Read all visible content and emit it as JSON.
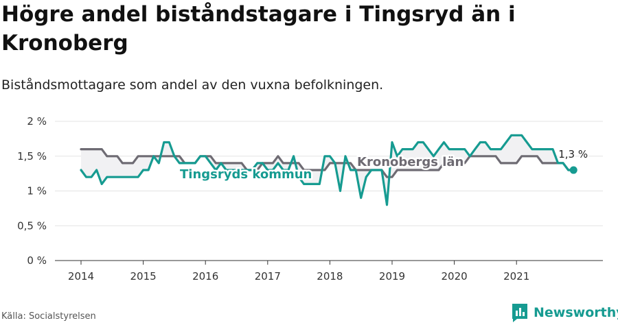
{
  "title": "Högre andel biståndstagare i Tingsryd än i Kronoberg",
  "subtitle": "Biståndsmottagare som andel av den vuxna befolkningen.",
  "source": "Källa: Socialstyrelsen",
  "brand": {
    "name": "Newsworthy"
  },
  "colors": {
    "teal": "#169b91",
    "gray": "#6e6b73",
    "band": "#f1f1f3",
    "grid": "#e3e3e3"
  },
  "chart_data": {
    "type": "line",
    "ylim": [
      0,
      2
    ],
    "y_ticks": [
      "0 %",
      "0,5 %",
      "1 %",
      "1,5 %",
      "2 %"
    ],
    "x_ticks": [
      "2014",
      "2015",
      "2016",
      "2017",
      "2018",
      "2019",
      "2020",
      "2021"
    ],
    "x_range": [
      "2014-01",
      "2021-12"
    ],
    "end_label": "1,3 %",
    "series": [
      {
        "name": "Kronobergs län",
        "color": "#6e6b73",
        "x_start": "2014-01",
        "values": [
          1.6,
          1.6,
          1.6,
          1.6,
          1.6,
          1.5,
          1.5,
          1.5,
          1.4,
          1.4,
          1.4,
          1.5,
          1.5,
          1.5,
          1.5,
          1.5,
          1.5,
          1.5,
          1.5,
          1.5,
          1.4,
          1.4,
          1.4,
          1.5,
          1.5,
          1.5,
          1.4,
          1.4,
          1.4,
          1.4,
          1.4,
          1.4,
          1.3,
          1.3,
          1.3,
          1.4,
          1.4,
          1.4,
          1.5,
          1.4,
          1.4,
          1.4,
          1.4,
          1.3,
          1.3,
          1.3,
          1.3,
          1.3,
          1.4,
          1.4,
          1.4,
          1.4,
          1.4,
          1.3,
          1.3,
          1.3,
          1.3,
          1.3,
          1.3,
          1.2,
          1.2,
          1.3,
          1.3,
          1.3,
          1.3,
          1.3,
          1.3,
          1.3,
          1.3,
          1.3,
          1.4,
          1.4,
          1.4,
          1.4,
          1.4,
          1.5,
          1.5,
          1.5,
          1.5,
          1.5,
          1.5,
          1.4,
          1.4,
          1.4,
          1.4,
          1.5,
          1.5,
          1.5,
          1.5,
          1.4,
          1.4,
          1.4,
          1.4,
          1.4,
          1.3,
          1.3
        ]
      },
      {
        "name": "Tingsryds kommun",
        "color": "#169b91",
        "x_start": "2014-01",
        "values": [
          1.3,
          1.2,
          1.2,
          1.3,
          1.1,
          1.2,
          1.2,
          1.2,
          1.2,
          1.2,
          1.2,
          1.2,
          1.3,
          1.3,
          1.5,
          1.4,
          1.7,
          1.7,
          1.5,
          1.4,
          1.4,
          1.4,
          1.4,
          1.5,
          1.5,
          1.4,
          1.3,
          1.4,
          1.3,
          1.3,
          1.3,
          1.3,
          1.3,
          1.3,
          1.4,
          1.4,
          1.3,
          1.3,
          1.4,
          1.3,
          1.3,
          1.5,
          1.2,
          1.1,
          1.1,
          1.1,
          1.1,
          1.5,
          1.5,
          1.4,
          1.0,
          1.5,
          1.3,
          1.3,
          0.9,
          1.2,
          1.3,
          1.3,
          1.3,
          0.8,
          1.7,
          1.5,
          1.6,
          1.6,
          1.6,
          1.7,
          1.7,
          1.6,
          1.5,
          1.6,
          1.7,
          1.6,
          1.6,
          1.6,
          1.6,
          1.5,
          1.6,
          1.7,
          1.7,
          1.6,
          1.6,
          1.6,
          1.7,
          1.8,
          1.8,
          1.8,
          1.7,
          1.6,
          1.6,
          1.6,
          1.6,
          1.6,
          1.4,
          1.4,
          1.3,
          1.3
        ]
      }
    ],
    "legend": "inline-labels"
  }
}
